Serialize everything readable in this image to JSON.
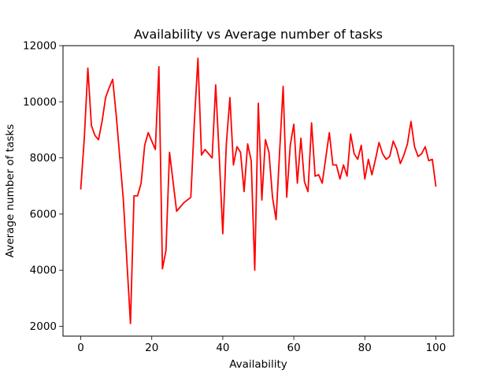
{
  "chart_data": {
    "type": "line",
    "title": "Availability vs Average number of tasks",
    "xlabel": "Availability",
    "ylabel": "Average number of tasks",
    "xlim": [
      -5,
      105
    ],
    "ylim": [
      1650,
      12000
    ],
    "xticks": [
      0,
      20,
      40,
      60,
      80,
      100
    ],
    "yticks": [
      2000,
      4000,
      6000,
      8000,
      10000,
      12000
    ],
    "grid": false,
    "legend": "none",
    "series": [
      {
        "color": "#ff0000",
        "x": [
          0,
          1,
          2,
          3,
          4,
          5,
          6,
          7,
          8,
          9,
          10,
          11,
          12,
          13,
          14,
          15,
          16,
          17,
          18,
          19,
          20,
          21,
          22,
          23,
          24,
          25,
          26,
          27,
          28,
          29,
          30,
          31,
          32,
          33,
          34,
          35,
          36,
          37,
          38,
          39,
          40,
          41,
          42,
          43,
          44,
          45,
          46,
          47,
          48,
          49,
          50,
          51,
          52,
          53,
          54,
          55,
          56,
          57,
          58,
          59,
          60,
          61,
          62,
          63,
          64,
          65,
          66,
          67,
          68,
          69,
          70,
          71,
          72,
          73,
          74,
          75,
          76,
          77,
          78,
          79,
          80,
          81,
          82,
          83,
          84,
          85,
          86,
          87,
          88,
          89,
          90,
          91,
          92,
          93,
          94,
          95,
          96,
          97,
          98,
          99,
          100
        ],
        "values": [
          6900,
          8700,
          11200,
          9150,
          8800,
          8650,
          9300,
          10150,
          10500,
          10800,
          9500,
          8000,
          6500,
          4300,
          2100,
          6650,
          6650,
          7100,
          8450,
          8900,
          8600,
          8300,
          11250,
          4050,
          4700,
          8200,
          7150,
          6100,
          6250,
          6400,
          6500,
          6600,
          9300,
          11550,
          8100,
          8300,
          8150,
          8000,
          10600,
          8050,
          5300,
          8500,
          10150,
          7750,
          8400,
          8200,
          6800,
          8500,
          7900,
          4000,
          9950,
          6500,
          8650,
          8200,
          6600,
          5800,
          8200,
          10550,
          6600,
          8450,
          9200,
          7100,
          8700,
          7150,
          6800,
          9250,
          7350,
          7400,
          7100,
          8000,
          8900,
          7750,
          7750,
          7250,
          7750,
          7350,
          8850,
          8150,
          7950,
          8450,
          7250,
          7950,
          7400,
          7950,
          8550,
          8150,
          7950,
          8050,
          8600,
          8300,
          7800,
          8100,
          8500,
          9300,
          8400,
          8050,
          8150,
          8400,
          7900,
          7950,
          7000
        ]
      }
    ]
  }
}
